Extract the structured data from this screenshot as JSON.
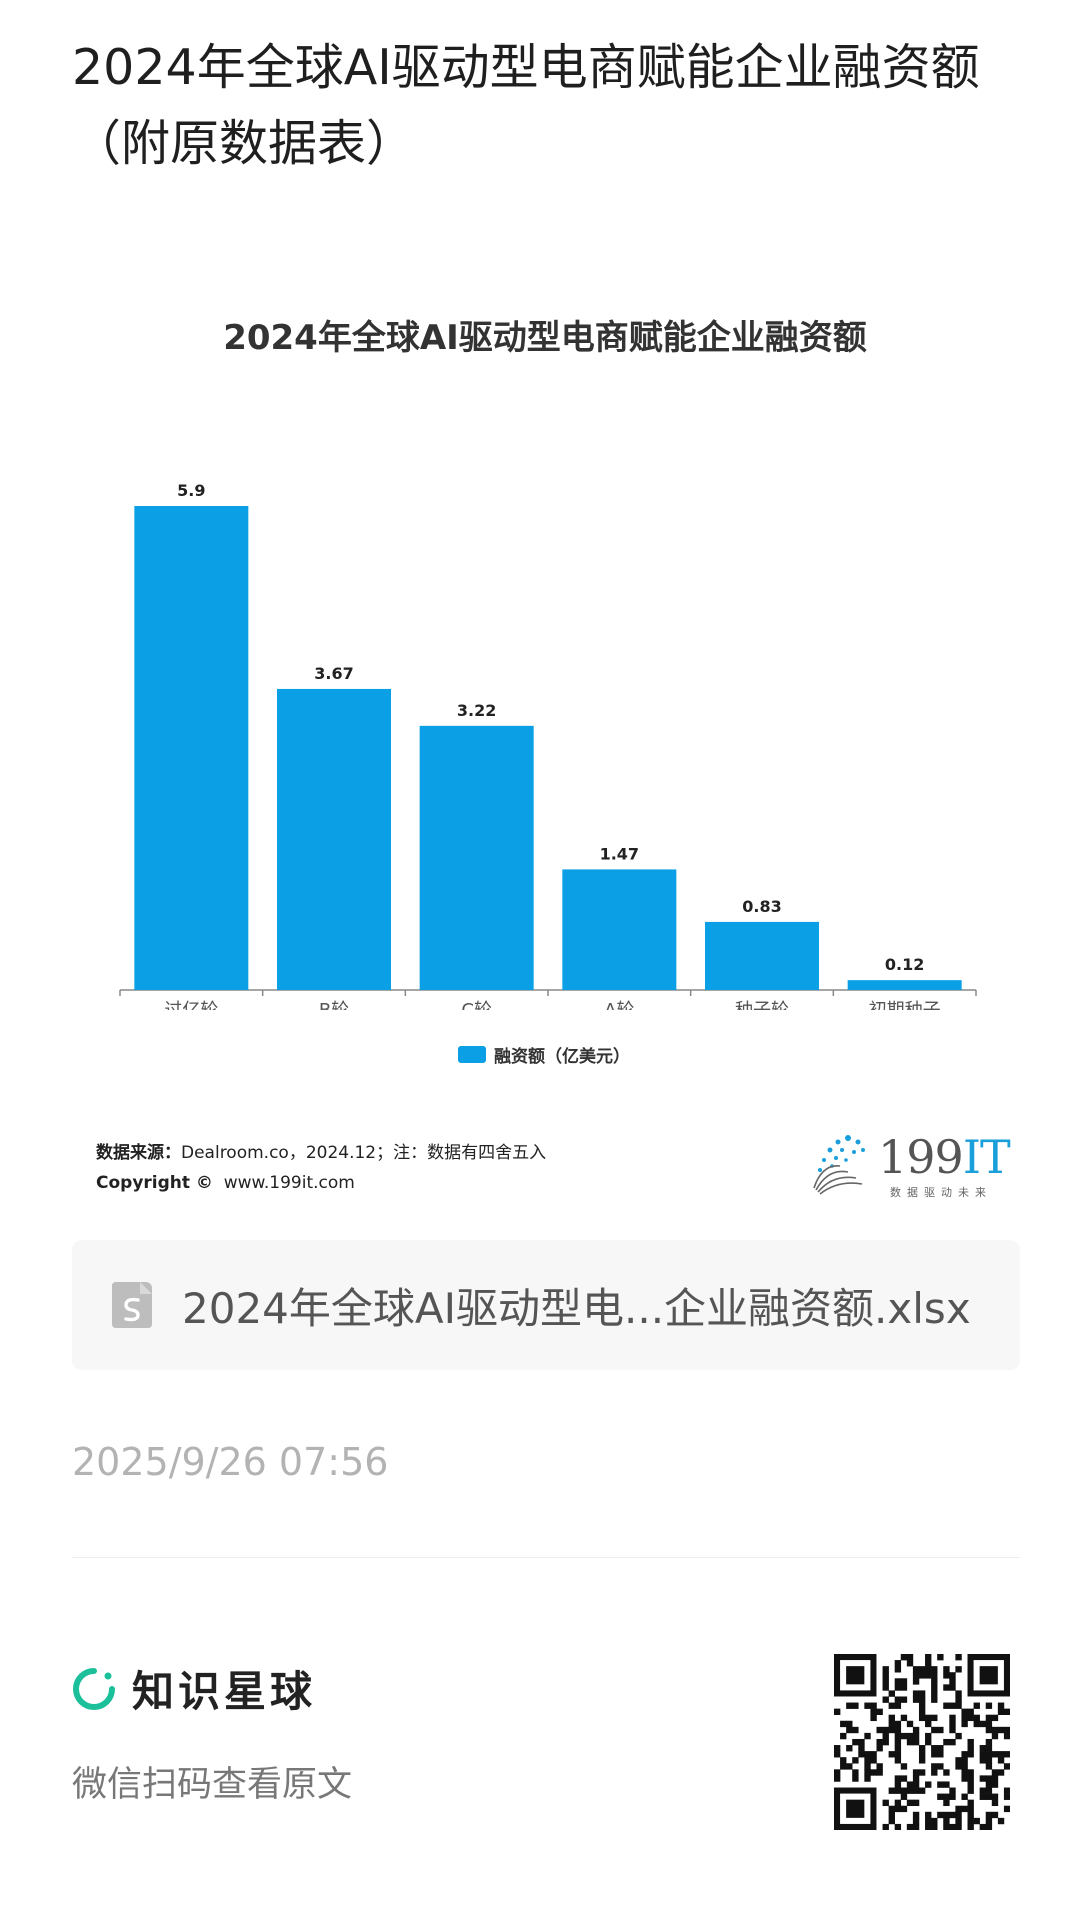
{
  "page": {
    "title": "2024年全球AI驱动型电商赋能企业融资额（附原数据表）"
  },
  "chart": {
    "title": "2024年全球AI驱动型电商赋能企业融资额",
    "legend_label": "融资额（亿美元）",
    "source_label": "数据来源：",
    "source_text": "Dealroom.co，2024.12；注：数据有四舍五入",
    "copyright_label": "Copyright ©",
    "copyright_text": "www.199it.com",
    "bar_color": "#0ba0e5"
  },
  "chart_data": {
    "type": "bar",
    "title": "2024年全球AI驱动型电商赋能企业融资额",
    "categories": [
      "过亿轮",
      "B轮",
      "C轮",
      "A轮",
      "种子轮",
      "初期种子"
    ],
    "series": [
      {
        "name": "融资额（亿美元）",
        "values": [
          5.9,
          3.67,
          3.22,
          1.47,
          0.83,
          0.12
        ]
      }
    ],
    "data_labels": [
      "5.9",
      "3.67",
      "3.22",
      "1.47",
      "0.83",
      "0.12"
    ],
    "ylim": [
      0,
      5.9
    ],
    "grid": false,
    "legend": "bottom"
  },
  "logo": {
    "number": "199",
    "suffix": "IT",
    "tagline": "数据驱动未来"
  },
  "file_card": {
    "icon": "spreadsheet-file-icon",
    "filename": "2024年全球AI驱动型电...企业融资额.xlsx"
  },
  "timestamp": "2025/9/26 07:56",
  "footer": {
    "brand_icon": "zhishi-xingqiu-ring-icon",
    "brand_name": "知识星球",
    "scan_text": "微信扫码查看原文",
    "qr_icon": "qr-code-icon"
  }
}
